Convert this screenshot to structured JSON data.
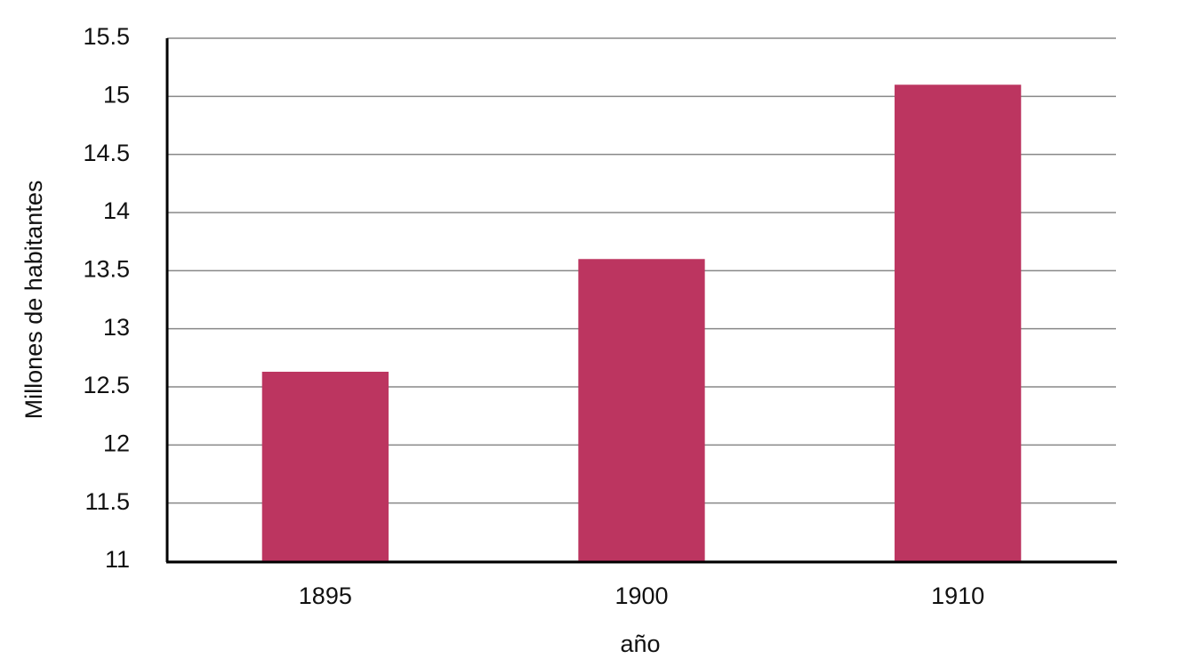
{
  "chart_data": {
    "type": "bar",
    "x_label": "año",
    "y_label": "Millones de habitantes",
    "categories": [
      "1895",
      "1900",
      "1910"
    ],
    "values": [
      12.63,
      13.6,
      15.1
    ],
    "color": "#bc3560",
    "ylim": [
      11,
      15.5
    ],
    "yticks": [
      11,
      11.5,
      12,
      12.5,
      13,
      13.5,
      14,
      14.5,
      15,
      15.5
    ],
    "grid": true
  }
}
